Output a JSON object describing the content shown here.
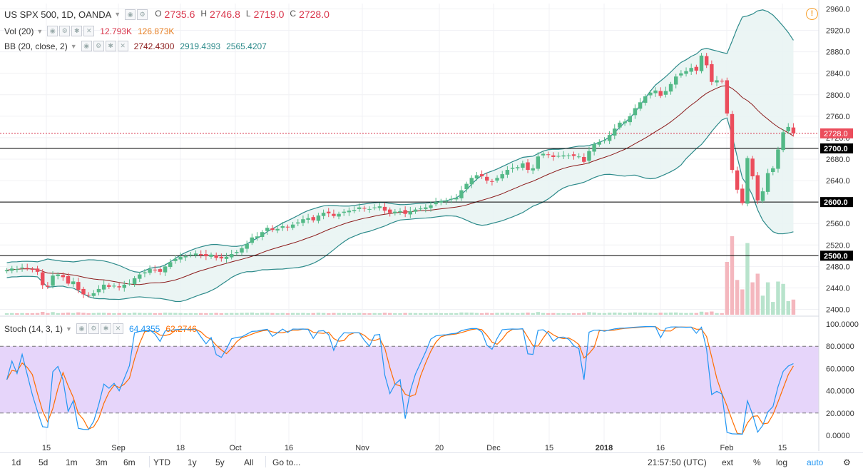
{
  "header": {
    "symbol_label": "US SPX 500, 1D, OANDA",
    "ohlc": [
      {
        "k": "O",
        "v": "2735.6"
      },
      {
        "k": "H",
        "v": "2746.8"
      },
      {
        "k": "L",
        "v": "2719.0"
      },
      {
        "k": "C",
        "v": "2728.0"
      }
    ]
  },
  "indicators": {
    "vol": {
      "label": "Vol (20)",
      "v1": "12.793K",
      "v2": "126.873K",
      "c1": "#d9364c",
      "c2": "#e67e22"
    },
    "bb": {
      "label": "BB (20, close, 2)",
      "v1": "2742.4300",
      "v2": "2919.4393",
      "v3": "2565.4207",
      "c1": "#8b1a1a",
      "c2": "#2c8a8a",
      "c3": "#2c8a8a"
    },
    "stoch": {
      "label": "Stoch (14, 3, 1)",
      "v1": "64.4355",
      "v2": "62.2746",
      "c1": "#2196f3",
      "c2": "#ff6d00"
    }
  },
  "price_axis": {
    "ticks": [
      "2960.0",
      "2920.0",
      "2880.0",
      "2840.0",
      "2800.0",
      "2760.0",
      "2720.0",
      "2680.0",
      "2640.0",
      "2600.0",
      "2560.0",
      "2520.0",
      "2480.0",
      "2440.0",
      "2400.0"
    ],
    "last_price_label": "2728.0",
    "level_labels": [
      "2700.0",
      "2600.0",
      "2500.0"
    ]
  },
  "stoch_axis": {
    "ticks": [
      "100.0000",
      "80.0000",
      "60.0000",
      "40.0000",
      "20.0000",
      "0.0000"
    ]
  },
  "time_axis": {
    "labels": [
      "15",
      "Sep",
      "18",
      "Oct",
      "16",
      "Nov",
      "20",
      "Dec",
      "15",
      "2018",
      "16",
      "Feb",
      "15"
    ]
  },
  "bottom_bar": {
    "timeframes": [
      "1d",
      "5d",
      "1m",
      "3m",
      "6m",
      "YTD",
      "1y",
      "5y",
      "All"
    ],
    "goto": "Go to...",
    "clock": "21:57:50 (UTC)",
    "options": [
      "ext",
      "%",
      "log",
      "auto"
    ]
  },
  "colors": {
    "up": "#53b987",
    "down": "#eb4d5c",
    "bb_fill": "#e9f4f3",
    "stoch_band": "#e6d5fa"
  },
  "chart_data": {
    "type": "candlestick",
    "symbol": "US SPX 500",
    "interval": "1D",
    "x_range": [
      "2017-08-04",
      "2018-02-20"
    ],
    "horizontal_levels": [
      2700,
      2600,
      2500
    ],
    "last_close": 2728.0,
    "ylim": [
      2390,
      2970
    ],
    "close": [
      2473,
      2476,
      2475,
      2478,
      2476,
      2474,
      2470,
      2445,
      2442,
      2463,
      2465,
      2460,
      2448,
      2452,
      2436,
      2428,
      2426,
      2430,
      2438,
      2446,
      2442,
      2444,
      2441,
      2446,
      2448,
      2458,
      2465,
      2469,
      2475,
      2473,
      2470,
      2480,
      2488,
      2494,
      2498,
      2499,
      2502,
      2504,
      2501,
      2499,
      2502,
      2496,
      2495,
      2498,
      2503,
      2507,
      2514,
      2522,
      2534,
      2536,
      2544,
      2552,
      2548,
      2550,
      2555,
      2553,
      2558,
      2562,
      2568,
      2570,
      2566,
      2575,
      2580,
      2579,
      2574,
      2578,
      2582,
      2584,
      2585,
      2590,
      2588,
      2587,
      2590,
      2592,
      2584,
      2580,
      2582,
      2583,
      2578,
      2583,
      2586,
      2588,
      2590,
      2594,
      2600,
      2602,
      2603,
      2606,
      2608,
      2622,
      2634,
      2645,
      2650,
      2648,
      2640,
      2638,
      2645,
      2652,
      2660,
      2664,
      2665,
      2672,
      2660,
      2663,
      2685,
      2690,
      2688,
      2684,
      2686,
      2687,
      2687,
      2686,
      2685,
      2675,
      2695,
      2708,
      2712,
      2715,
      2725,
      2737,
      2748,
      2750,
      2760,
      2775,
      2786,
      2797,
      2804,
      2808,
      2798,
      2807,
      2820,
      2834,
      2840,
      2844,
      2850,
      2845,
      2873,
      2855,
      2824,
      2827,
      2825,
      2765,
      2660,
      2623,
      2598,
      2682,
      2648,
      2603,
      2620,
      2654,
      2663,
      2698,
      2730,
      2740,
      2728
    ],
    "ma20_bb_basis_end": 2742.43,
    "bb_upper_end": 2919.4393,
    "bb_lower_end": 2565.4207,
    "volume": {
      "ylim": [
        0,
        126873
      ],
      "series_end": 12793,
      "ma_end": 126873
    },
    "stoch": {
      "ylim": [
        0,
        100
      ],
      "levels": [
        80,
        20
      ],
      "k_end": 64.4355,
      "d_end": 62.2746
    }
  }
}
